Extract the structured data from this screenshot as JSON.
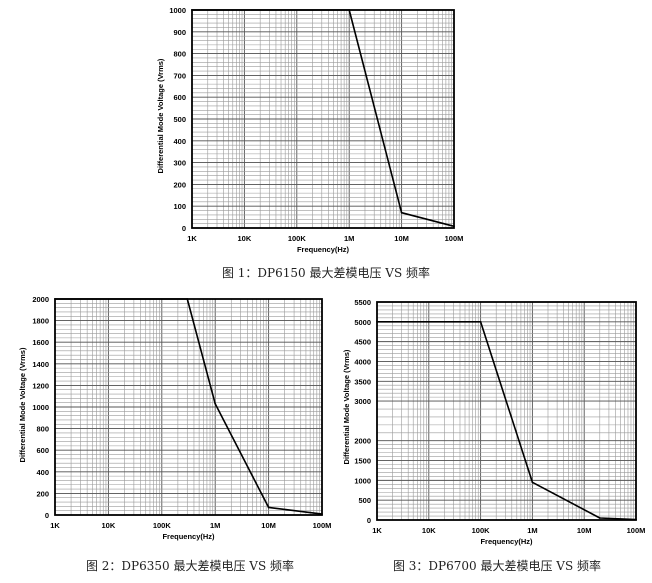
{
  "chart_data": [
    {
      "type": "line",
      "caption": "图 1：DP6150 最大差模电压 VS 频率",
      "xlabel": "Frequency(Hz)",
      "ylabel": "Differential Mode Voltage (Vrms)",
      "x_scale": "log",
      "xlim": [
        1000,
        100000000
      ],
      "x_ticks": [
        1000,
        10000,
        100000,
        1000000,
        10000000,
        100000000
      ],
      "x_tick_labels": [
        "1K",
        "10K",
        "100K",
        "1M",
        "10M",
        "100M"
      ],
      "ylim": [
        0,
        1000
      ],
      "y_ticks": [
        0,
        100,
        200,
        300,
        400,
        500,
        600,
        700,
        800,
        900,
        1000
      ],
      "y_tick_labels": [
        "0",
        "100",
        "200",
        "300",
        "400",
        "500",
        "600",
        "700",
        "800",
        "900",
        "1000"
      ],
      "series": [
        {
          "x": [
            1000,
            1000000,
            10000000,
            100000000
          ],
          "y": [
            1000,
            1000,
            70,
            8
          ]
        }
      ]
    },
    {
      "type": "line",
      "caption": "图 2：DP6350 最大差模电压 VS 频率",
      "xlabel": "Frequency(Hz)",
      "ylabel": "Differential Mode Voltage (Vrms)",
      "x_scale": "log",
      "xlim": [
        1000,
        100000000
      ],
      "x_ticks": [
        1000,
        10000,
        100000,
        1000000,
        10000000,
        100000000
      ],
      "x_tick_labels": [
        "1K",
        "10K",
        "100K",
        "1M",
        "10M",
        "100M"
      ],
      "ylim": [
        0,
        2000
      ],
      "y_ticks": [
        0,
        200,
        400,
        600,
        800,
        1000,
        1200,
        1400,
        1600,
        1800,
        2000
      ],
      "y_tick_labels": [
        "0",
        "200",
        "400",
        "600",
        "800",
        "1000",
        "1200",
        "1400",
        "1600",
        "1800",
        "2000"
      ],
      "series": [
        {
          "x": [
            1000,
            300000,
            1000000,
            10000000,
            100000000
          ],
          "y": [
            2000,
            2000,
            1030,
            70,
            8
          ]
        }
      ]
    },
    {
      "type": "line",
      "caption": "图 3：DP6700 最大差模电压 VS 频率",
      "xlabel": "Frequency(Hz)",
      "ylabel": "Differential Mode Voltage (Vrms)",
      "x_scale": "log",
      "xlim": [
        1000,
        100000000
      ],
      "x_ticks": [
        1000,
        10000,
        100000,
        1000000,
        10000000,
        100000000
      ],
      "x_tick_labels": [
        "1K",
        "10K",
        "100K",
        "1M",
        "10M",
        "100M"
      ],
      "ylim": [
        0,
        5500
      ],
      "y_ticks": [
        0,
        500,
        1000,
        1500,
        2000,
        3000,
        3500,
        4000,
        4500,
        5000,
        5500
      ],
      "y_tick_labels": [
        "0",
        "500",
        "1000",
        "1500",
        "2000",
        "3000",
        "3500",
        "4000",
        "4500",
        "5000",
        "5500"
      ],
      "series": [
        {
          "x": [
            1000,
            100000,
            1000000,
            20000000,
            100000000
          ],
          "y": [
            5000,
            5000,
            950,
            50,
            10
          ]
        }
      ]
    }
  ]
}
